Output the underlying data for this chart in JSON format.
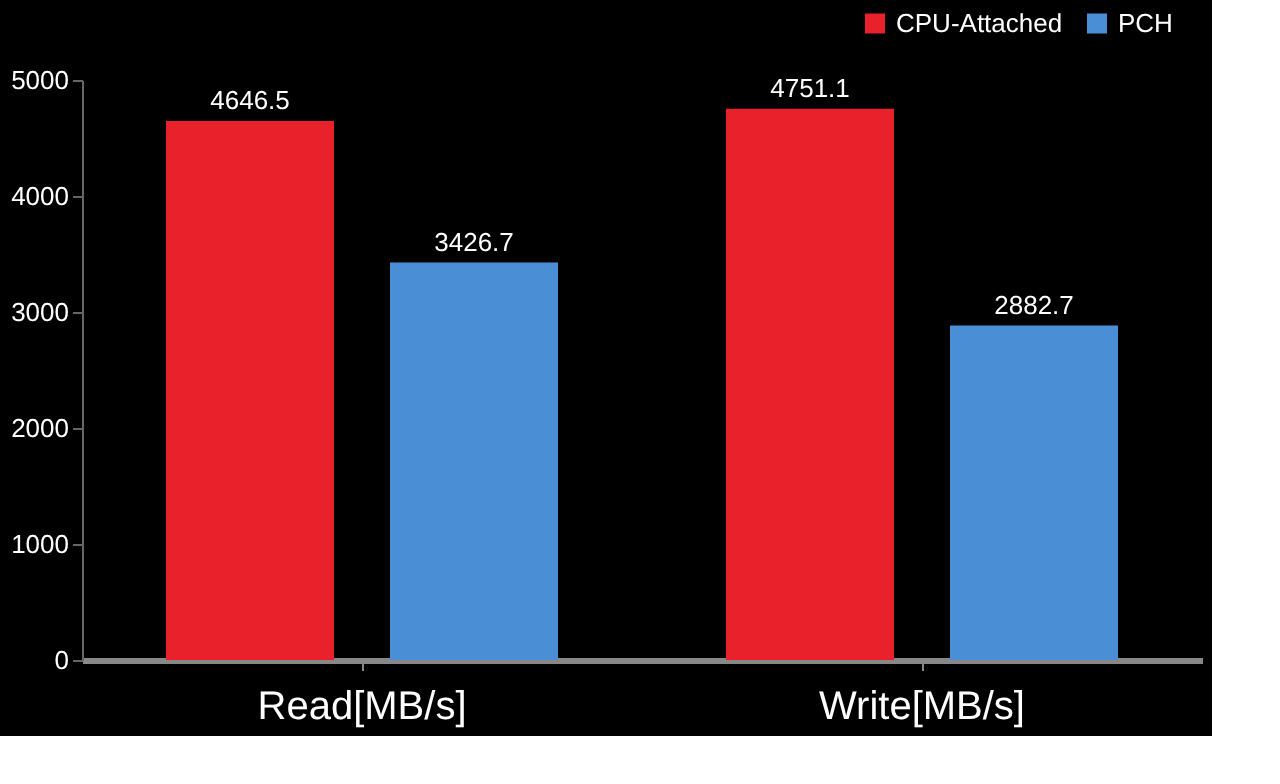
{
  "chart_data": {
    "type": "bar",
    "categories": [
      "Read[MB/s]",
      "Write[MB/s]"
    ],
    "series": [
      {
        "name": "CPU-Attached",
        "color": "#e8212b",
        "values": [
          4646.5,
          4751.1
        ]
      },
      {
        "name": "PCH",
        "color": "#4a8fd6",
        "values": [
          3426.7,
          2882.7
        ]
      }
    ],
    "ylim": [
      0,
      5000
    ],
    "yticks": [
      0,
      1000,
      2000,
      3000,
      4000,
      5000
    ],
    "grid": false,
    "legend": "top right",
    "data_labels": true
  }
}
